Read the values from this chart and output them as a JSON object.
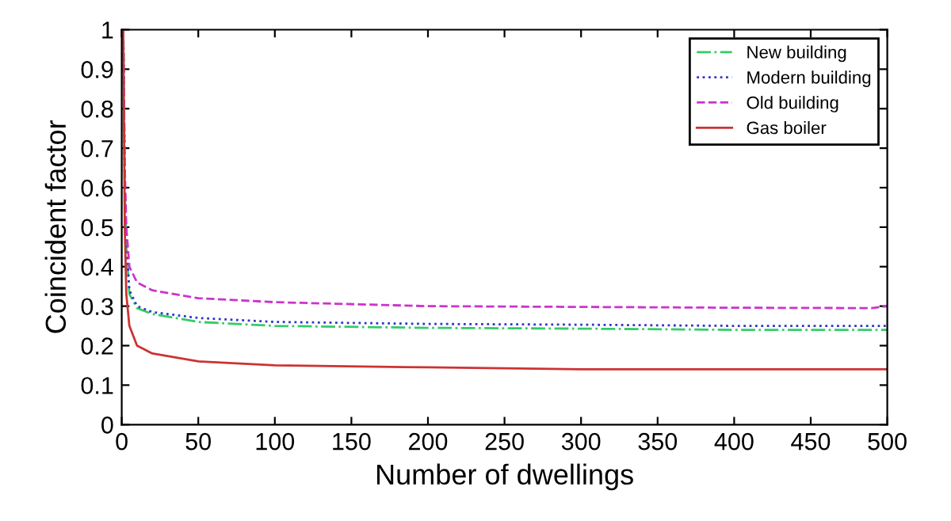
{
  "chart_data": {
    "type": "line",
    "xlabel": "Number of dwellings",
    "ylabel": "Coincident factor",
    "xlim": [
      0,
      500
    ],
    "ylim": [
      0,
      1
    ],
    "xticks": [
      0,
      50,
      100,
      150,
      200,
      250,
      300,
      350,
      400,
      450,
      500
    ],
    "yticks": [
      0,
      0.1,
      0.2,
      0.3,
      0.4,
      0.5,
      0.6,
      0.7,
      0.8,
      0.9,
      1
    ],
    "grid": false,
    "legend": "top right",
    "marker": "none",
    "series": [
      {
        "name": "New building",
        "color": "#33cc66",
        "line_style": "dashdot",
        "x": [
          1,
          2,
          3,
          5,
          10,
          20,
          50,
          100,
          200,
          300,
          400,
          500
        ],
        "values": [
          1,
          0.6,
          0.45,
          0.33,
          0.295,
          0.28,
          0.26,
          0.25,
          0.245,
          0.243,
          0.24,
          0.24
        ]
      },
      {
        "name": "Modern building",
        "color": "#3333cc",
        "line_style": "dotted",
        "x": [
          1,
          2,
          3,
          5,
          10,
          20,
          50,
          100,
          200,
          300,
          400,
          500
        ],
        "values": [
          1,
          0.6,
          0.46,
          0.34,
          0.3,
          0.285,
          0.27,
          0.26,
          0.255,
          0.253,
          0.25,
          0.25
        ]
      },
      {
        "name": "Old building",
        "color": "#cc33cc",
        "line_style": "dashed",
        "x": [
          1,
          2,
          3,
          5,
          10,
          20,
          50,
          100,
          200,
          300,
          400,
          490,
          500
        ],
        "values": [
          1,
          0.65,
          0.5,
          0.4,
          0.36,
          0.34,
          0.32,
          0.31,
          0.3,
          0.298,
          0.296,
          0.295,
          0.3
        ]
      },
      {
        "name": "Gas boiler",
        "color": "#cc3333",
        "line_style": "solid",
        "x": [
          1,
          2,
          3,
          5,
          10,
          20,
          50,
          100,
          200,
          300,
          400,
          500
        ],
        "values": [
          1,
          0.5,
          0.33,
          0.25,
          0.2,
          0.18,
          0.16,
          0.15,
          0.145,
          0.14,
          0.14,
          0.14
        ]
      }
    ]
  }
}
